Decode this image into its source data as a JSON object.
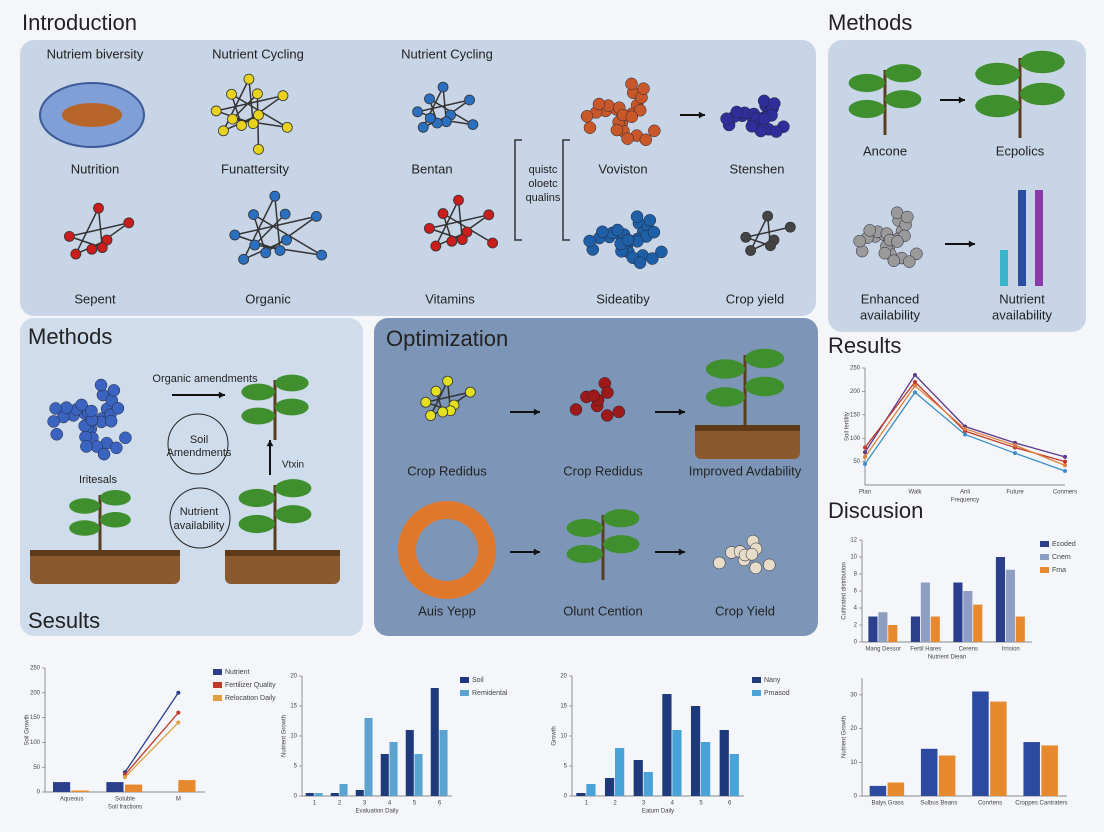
{
  "introduction": {
    "title": "Introduction",
    "labels": [
      "Nutriem biversity",
      "Nutrient Cycling",
      "Nutrient Cycling",
      "Nutrition",
      "Funattersity",
      "Bentan",
      "Voviston",
      "Stenshen",
      "Sepent",
      "Organic",
      "Vitamins",
      "Sideatiby",
      "Crop yield"
    ],
    "note": [
      "quistc",
      "oloetc",
      "qualins"
    ]
  },
  "methods_top": {
    "title": "Methods",
    "labels": [
      "Ancone",
      "Ecpolics"
    ],
    "captions": [
      [
        "Enhanced",
        "availability"
      ],
      [
        "Nutrient",
        "availability"
      ]
    ]
  },
  "methods_left": {
    "title": "Methods",
    "labels": [
      "Organic amendments",
      "Iritesals",
      "Vtxin"
    ],
    "circles": [
      [
        "Soil",
        "Amendments"
      ],
      [
        "Nutrient",
        "availability"
      ]
    ],
    "footer": "Sesults"
  },
  "optimization": {
    "title": "Optimization",
    "labels": [
      "Crop Redidus",
      "Crop Redidus",
      "Improved Avdability",
      "Auis Yepp",
      "Olunt Cention",
      "Crop Yield"
    ]
  },
  "results": {
    "title": "Results"
  },
  "discussion": {
    "title": "Discusion"
  },
  "charts": [
    {
      "type": "line",
      "ylabel": "Soil fertility",
      "xlabel": "Frequency",
      "categories": [
        "Plan",
        "Walk",
        "Anli",
        "Future",
        "Conmers"
      ],
      "ylim": [
        0,
        250
      ],
      "yticks": [
        50,
        100,
        150,
        200,
        250
      ],
      "series": [
        {
          "color": "#5b3a8e",
          "values": [
            70,
            235,
            125,
            90,
            60
          ]
        },
        {
          "color": "#c0392b",
          "values": [
            80,
            220,
            115,
            80,
            50
          ]
        },
        {
          "color": "#e0823c",
          "values": [
            60,
            212,
            120,
            85,
            42
          ]
        },
        {
          "color": "#3d8fc6",
          "values": [
            45,
            198,
            108,
            68,
            30
          ]
        }
      ]
    },
    {
      "type": "bar",
      "ylabel": "Cultivated distribution",
      "xlabel": "Nutrient Diean",
      "categories": [
        "Mang Dessor",
        "Fertil Hares",
        "Cerens",
        "Irrision"
      ],
      "ylim": [
        0,
        12
      ],
      "yticks": [
        0,
        2,
        4,
        6,
        8,
        10,
        12
      ],
      "legend": "right",
      "series": [
        {
          "name": "Ecoded",
          "color": "#2b3f8c",
          "values": [
            3,
            3,
            7,
            10
          ]
        },
        {
          "name": "Cnem",
          "color": "#8e9dc2",
          "values": [
            3.5,
            7,
            6,
            8.5
          ]
        },
        {
          "name": "Fma",
          "color": "#e6892f",
          "values": [
            2,
            3,
            4.4,
            3
          ]
        }
      ]
    },
    {
      "type": "bar",
      "ylabel": "Soil Growth",
      "xlabel": "Soil fractions",
      "categories": [
        "Aqueous",
        "Soluble",
        "M"
      ],
      "ylim": [
        0,
        250
      ],
      "yticks": [
        0,
        50,
        100,
        150,
        200,
        250
      ],
      "legend": "right",
      "series": [
        {
          "color": "#2b3f8c",
          "values": [
            20,
            20,
            null
          ]
        },
        {
          "color": "#e6892f",
          "values": [
            3,
            15,
            24
          ]
        },
        {
          "name": "Nutrient",
          "kind": "line",
          "color": "#2b3f8c",
          "values": [
            null,
            40,
            200
          ]
        },
        {
          "name": "Fertilizer Quality",
          "kind": "line",
          "color": "#c0392b",
          "values": [
            null,
            35,
            160
          ]
        },
        {
          "name": "Relocation Daily",
          "kind": "line",
          "color": "#e0a040",
          "values": [
            null,
            30,
            140
          ]
        }
      ]
    },
    {
      "type": "bar",
      "ylabel": "Nutrient Growth",
      "xlabel": "Evaluation Daily",
      "categories": [
        "1",
        "2",
        "3",
        "4",
        "5",
        "6"
      ],
      "ylim": [
        0,
        20
      ],
      "yticks": [
        0,
        5,
        10,
        15,
        20
      ],
      "legend": "right",
      "series": [
        {
          "name": "Soil",
          "color": "#1f3a7a",
          "values": [
            0.5,
            0.5,
            1,
            7,
            11,
            18
          ]
        },
        {
          "name": "Remidental",
          "color": "#5ba3d0",
          "values": [
            0.5,
            2,
            13,
            9,
            7,
            11
          ]
        }
      ]
    },
    {
      "type": "bar",
      "ylabel": "Growth",
      "xlabel": "Eatum Daily",
      "categories": [
        "1",
        "2",
        "3",
        "4",
        "5",
        "6"
      ],
      "ylim": [
        0,
        20
      ],
      "yticks": [
        0,
        5,
        10,
        15,
        20
      ],
      "legend": "right",
      "series": [
        {
          "name": "Nany",
          "color": "#1f3a7a",
          "values": [
            0.5,
            3,
            6,
            17,
            15,
            11
          ]
        },
        {
          "name": "Pmasod",
          "color": "#4aa3d8",
          "values": [
            2,
            8,
            4,
            11,
            9,
            7
          ]
        }
      ]
    },
    {
      "type": "bar",
      "ylabel": "Nutrient Growth",
      "categories": [
        "Balys Grass",
        "Sulbus Beans",
        "Conrtens",
        "Croppes Cantraters"
      ],
      "ylim": [
        0,
        35
      ],
      "yticks": [
        0,
        10,
        20,
        30
      ],
      "series": [
        {
          "color": "#2b4aa0",
          "values": [
            3,
            14,
            31,
            16
          ]
        },
        {
          "color": "#e6892f",
          "values": [
            4,
            12,
            28,
            15
          ]
        }
      ]
    }
  ]
}
